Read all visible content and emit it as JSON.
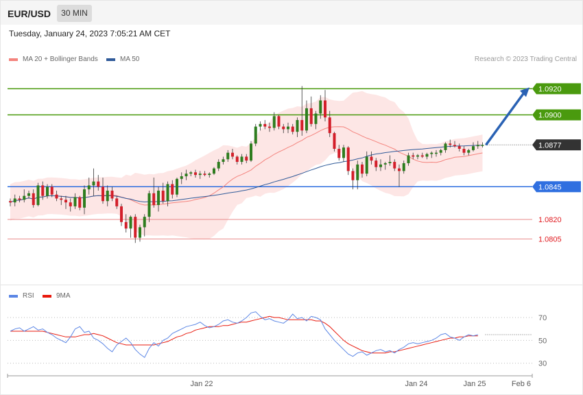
{
  "header": {
    "symbol": "EUR/USD",
    "timeframe": "30 MIN"
  },
  "datetime": "Tuesday, January 24, 2023 7:05:21 AM CET",
  "legend_main": [
    {
      "label": "MA 20 + Bollinger Bands",
      "color": "#f4837d"
    },
    {
      "label": "MA 50",
      "color": "#2f5a99"
    }
  ],
  "copyright": "Research © 2023 Trading Central",
  "legend_rsi": [
    {
      "label": "RSI",
      "color": "#5b86e5"
    },
    {
      "label": "9MA",
      "color": "#e8180c"
    }
  ],
  "chart_data": {
    "type": "candlestick",
    "price_range": [
      1.0778,
      1.0938
    ],
    "levels": [
      {
        "label": "1.0920",
        "value": 1.092,
        "kind": "resistance",
        "color": "#4a9a0e",
        "tag": true
      },
      {
        "label": "1.0900",
        "value": 1.09,
        "kind": "resistance",
        "color": "#4a9a0e",
        "tag": true
      },
      {
        "label": "1.0877",
        "value": 1.0877,
        "kind": "last-price",
        "color": "#333333",
        "tag": true
      },
      {
        "label": "1.0845",
        "value": 1.0845,
        "kind": "pivot",
        "color": "#2f6fe0",
        "tag": true
      },
      {
        "label": "1.0820",
        "value": 1.082,
        "kind": "support",
        "color": "#e98a8a",
        "tag": false
      },
      {
        "label": "1.0805",
        "value": 1.0805,
        "kind": "support",
        "color": "#e98a8a",
        "tag": false
      }
    ],
    "x_ticks": [
      "Jan 22",
      "Jan 24",
      "Jan 25",
      "Feb 6"
    ],
    "candles": [
      [
        1.0834,
        1.0836,
        1.083,
        1.0833
      ],
      [
        1.0833,
        1.0839,
        1.083,
        1.0836
      ],
      [
        1.0836,
        1.0838,
        1.0833,
        1.0835
      ],
      [
        1.0835,
        1.0843,
        1.0833,
        1.0838
      ],
      [
        1.0838,
        1.0842,
        1.0836,
        1.084
      ],
      [
        1.084,
        1.0843,
        1.0829,
        1.0831
      ],
      [
        1.0831,
        1.0848,
        1.083,
        1.0846
      ],
      [
        1.0846,
        1.0849,
        1.0835,
        1.0838
      ],
      [
        1.0838,
        1.0847,
        1.0836,
        1.0845
      ],
      [
        1.0845,
        1.0847,
        1.0837,
        1.0839
      ],
      [
        1.0839,
        1.0842,
        1.0834,
        1.0836
      ],
      [
        1.0836,
        1.0838,
        1.0831,
        1.0835
      ],
      [
        1.0835,
        1.0838,
        1.0828,
        1.0833
      ],
      [
        1.0833,
        1.0836,
        1.0826,
        1.083
      ],
      [
        1.083,
        1.084,
        1.0828,
        1.0837
      ],
      [
        1.0837,
        1.0838,
        1.0827,
        1.0829
      ],
      [
        1.0829,
        1.0846,
        1.0824,
        1.0843
      ],
      [
        1.0843,
        1.0852,
        1.0839,
        1.0846
      ],
      [
        1.0846,
        1.0859,
        1.0838,
        1.0849
      ],
      [
        1.0849,
        1.0854,
        1.0842,
        1.0845
      ],
      [
        1.0845,
        1.0852,
        1.0832,
        1.0834
      ],
      [
        1.0834,
        1.0846,
        1.083,
        1.0842
      ],
      [
        1.0842,
        1.0845,
        1.0834,
        1.0836
      ],
      [
        1.0836,
        1.0838,
        1.0828,
        1.083
      ],
      [
        1.083,
        1.0832,
        1.0815,
        1.0818
      ],
      [
        1.0818,
        1.0824,
        1.081,
        1.0813
      ],
      [
        1.0813,
        1.0823,
        1.0806,
        1.0822
      ],
      [
        1.0822,
        1.0824,
        1.0802,
        1.0806
      ],
      [
        1.0806,
        1.0816,
        1.0803,
        1.0814
      ],
      [
        1.0814,
        1.0824,
        1.0807,
        1.0822
      ],
      [
        1.0822,
        1.0842,
        1.0818,
        1.084
      ],
      [
        1.084,
        1.0852,
        1.0829,
        1.0831
      ],
      [
        1.0831,
        1.0845,
        1.0826,
        1.0842
      ],
      [
        1.0842,
        1.0848,
        1.0832,
        1.0834
      ],
      [
        1.0834,
        1.0849,
        1.083,
        1.0847
      ],
      [
        1.0847,
        1.085,
        1.0836,
        1.0839
      ],
      [
        1.0839,
        1.0852,
        1.0837,
        1.0851
      ],
      [
        1.0851,
        1.0856,
        1.0847,
        1.0853
      ],
      [
        1.0853,
        1.0858,
        1.085,
        1.0855
      ],
      [
        1.0855,
        1.0857,
        1.0853,
        1.0856
      ],
      [
        1.0856,
        1.0858,
        1.0852,
        1.0854
      ],
      [
        1.0854,
        1.0857,
        1.0851,
        1.0855
      ],
      [
        1.0855,
        1.0857,
        1.0853,
        1.0854
      ],
      [
        1.0854,
        1.0856,
        1.0852,
        1.0855
      ],
      [
        1.0855,
        1.086,
        1.0854,
        1.0859
      ],
      [
        1.0859,
        1.0866,
        1.0857,
        1.0864
      ],
      [
        1.0864,
        1.0868,
        1.0862,
        1.0866
      ],
      [
        1.0866,
        1.0873,
        1.0864,
        1.0871
      ],
      [
        1.0871,
        1.0874,
        1.0866,
        1.0868
      ],
      [
        1.0868,
        1.0869,
        1.0862,
        1.0864
      ],
      [
        1.0864,
        1.087,
        1.0862,
        1.0868
      ],
      [
        1.0868,
        1.087,
        1.0863,
        1.0865
      ],
      [
        1.0865,
        1.088,
        1.0864,
        1.0878
      ],
      [
        1.0878,
        1.0893,
        1.0876,
        1.0891
      ],
      [
        1.0891,
        1.0895,
        1.0888,
        1.0893
      ],
      [
        1.0893,
        1.0896,
        1.0889,
        1.0891
      ],
      [
        1.0891,
        1.0894,
        1.0887,
        1.089
      ],
      [
        1.089,
        1.0902,
        1.0888,
        1.0899
      ],
      [
        1.0899,
        1.09,
        1.0889,
        1.0891
      ],
      [
        1.0891,
        1.0893,
        1.0886,
        1.0889
      ],
      [
        1.0889,
        1.0894,
        1.0886,
        1.0891
      ],
      [
        1.0891,
        1.0893,
        1.0885,
        1.0887
      ],
      [
        1.0887,
        1.0898,
        1.0883,
        1.0896
      ],
      [
        1.0896,
        1.0922,
        1.0884,
        1.0888
      ],
      [
        1.0888,
        1.0911,
        1.0886,
        1.0905
      ],
      [
        1.0905,
        1.0914,
        1.0891,
        1.0893
      ],
      [
        1.0893,
        1.0903,
        1.0889,
        1.0901
      ],
      [
        1.0901,
        1.0915,
        1.0897,
        1.0911
      ],
      [
        1.0911,
        1.0919,
        1.0895,
        1.0898
      ],
      [
        1.0898,
        1.0903,
        1.0883,
        1.0886
      ],
      [
        1.0886,
        1.0887,
        1.0872,
        1.0874
      ],
      [
        1.0874,
        1.0877,
        1.0865,
        1.0867
      ],
      [
        1.0867,
        1.0877,
        1.0864,
        1.0875
      ],
      [
        1.0875,
        1.0876,
        1.0854,
        1.0857
      ],
      [
        1.0857,
        1.0859,
        1.0843,
        1.085
      ],
      [
        1.085,
        1.0865,
        1.0843,
        1.0862
      ],
      [
        1.0862,
        1.0864,
        1.0852,
        1.0855
      ],
      [
        1.0855,
        1.0872,
        1.0853,
        1.0868
      ],
      [
        1.0868,
        1.0872,
        1.0862,
        1.0865
      ],
      [
        1.0865,
        1.0867,
        1.0857,
        1.086
      ],
      [
        1.086,
        1.0866,
        1.0857,
        1.0862
      ],
      [
        1.0862,
        1.0864,
        1.0858,
        1.0863
      ],
      [
        1.0863,
        1.0869,
        1.0861,
        1.0864
      ],
      [
        1.0864,
        1.0866,
        1.0857,
        1.0859
      ],
      [
        1.0859,
        1.0862,
        1.0845,
        1.0857
      ],
      [
        1.0857,
        1.0865,
        1.0855,
        1.0863
      ],
      [
        1.0863,
        1.0871,
        1.0861,
        1.0869
      ],
      [
        1.0869,
        1.0871,
        1.0866,
        1.0868
      ],
      [
        1.0868,
        1.087,
        1.0866,
        1.0869
      ],
      [
        1.0869,
        1.0871,
        1.0867,
        1.0868
      ],
      [
        1.0868,
        1.0871,
        1.0866,
        1.087
      ],
      [
        1.087,
        1.0872,
        1.0867,
        1.0871
      ],
      [
        1.0871,
        1.0873,
        1.0868,
        1.0871
      ],
      [
        1.0871,
        1.0874,
        1.0869,
        1.0873
      ],
      [
        1.0873,
        1.0879,
        1.0871,
        1.0878
      ],
      [
        1.0878,
        1.0881,
        1.0875,
        1.0877
      ],
      [
        1.0877,
        1.088,
        1.0875,
        1.0876
      ],
      [
        1.0876,
        1.0878,
        1.0872,
        1.0874
      ],
      [
        1.0874,
        1.0876,
        1.0869,
        1.0871
      ],
      [
        1.0871,
        1.0874,
        1.0869,
        1.0873
      ],
      [
        1.0873,
        1.0879,
        1.0872,
        1.0876
      ],
      [
        1.0876,
        1.088,
        1.0874,
        1.0877
      ],
      [
        1.0877,
        1.0879,
        1.0875,
        1.0877
      ]
    ],
    "forecast_arrow": {
      "from": 1.0877,
      "to": 1.092
    },
    "rsi": {
      "y_ticks": [
        70,
        50,
        30
      ],
      "range": [
        22,
        82
      ],
      "rsi_values": [
        58,
        60,
        61,
        58,
        60,
        62,
        59,
        60,
        57,
        55,
        52,
        50,
        48,
        53,
        60,
        62,
        57,
        58,
        52,
        50,
        47,
        43,
        40,
        46,
        49,
        52,
        48,
        42,
        38,
        35,
        43,
        48,
        45,
        50,
        52,
        56,
        58,
        60,
        62,
        63,
        64,
        66,
        63,
        61,
        62,
        64,
        67,
        68,
        66,
        65,
        67,
        70,
        74,
        75,
        71,
        68,
        69,
        67,
        66,
        65,
        68,
        73,
        69,
        70,
        67,
        71,
        70,
        68,
        60,
        55,
        50,
        46,
        42,
        38,
        36,
        39,
        40,
        37,
        39,
        41,
        42,
        40,
        41,
        39,
        42,
        44,
        47,
        48,
        47,
        48,
        49,
        50,
        52,
        55,
        56,
        53,
        52,
        50,
        53,
        55,
        54,
        55
      ],
      "ma_values": [
        58,
        58,
        58,
        58,
        58,
        58,
        58,
        58,
        57,
        56,
        55,
        54,
        53,
        53,
        53,
        54,
        55,
        55,
        56,
        55,
        54,
        52,
        50,
        48,
        47,
        46,
        46,
        46,
        46,
        46,
        46,
        46,
        47,
        48,
        49,
        51,
        53,
        54,
        56,
        57,
        59,
        60,
        61,
        62,
        62,
        62,
        63,
        63,
        64,
        65,
        66,
        66,
        67,
        68,
        69,
        70,
        71,
        70,
        70,
        69,
        68,
        68,
        68,
        68,
        68,
        68,
        67,
        67,
        65,
        62,
        58,
        54,
        50,
        47,
        45,
        43,
        41,
        40,
        39,
        39,
        39,
        39,
        40,
        40,
        41,
        42,
        43,
        44,
        45,
        46,
        47,
        48,
        49,
        50,
        51,
        52,
        52,
        53,
        53,
        54,
        54,
        54
      ]
    }
  }
}
